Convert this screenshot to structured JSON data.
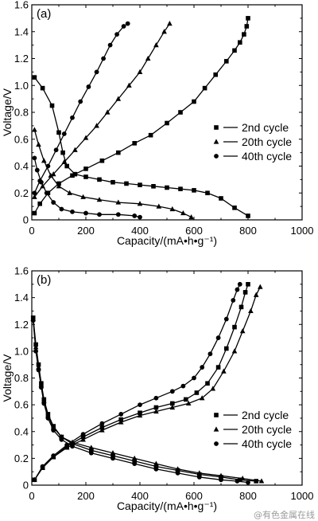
{
  "watermark": "@有色金属在线",
  "chart_data": [
    {
      "type": "line",
      "panel_label": "(a)",
      "xlabel": "Capacity/(mA•h•g⁻¹)",
      "ylabel": "Voltage/V",
      "xlim": [
        0,
        1000
      ],
      "ylim": [
        0,
        1.6
      ],
      "xticks": [
        "0",
        "200",
        "400",
        "600",
        "800",
        "1000"
      ],
      "yticks": [
        "0",
        "0.2",
        "0.4",
        "0.6",
        "0.8",
        "1.0",
        "1.2",
        "1.4",
        "1.6"
      ],
      "legend_position": "right",
      "series": [
        {
          "name": "2nd cycle",
          "marker": "square",
          "discharge": [
            [
              10,
              1.06
            ],
            [
              40,
              0.98
            ],
            [
              75,
              0.85
            ],
            [
              100,
              0.65
            ],
            [
              115,
              0.5
            ],
            [
              130,
              0.4
            ],
            [
              160,
              0.34
            ],
            [
              200,
              0.32
            ],
            [
              250,
              0.3
            ],
            [
              300,
              0.28
            ],
            [
              350,
              0.27
            ],
            [
              400,
              0.26
            ],
            [
              450,
              0.25
            ],
            [
              500,
              0.24
            ],
            [
              550,
              0.23
            ],
            [
              600,
              0.22
            ],
            [
              650,
              0.2
            ],
            [
              700,
              0.16
            ],
            [
              750,
              0.09
            ],
            [
              800,
              0.03
            ]
          ],
          "charge": [
            [
              10,
              0.05
            ],
            [
              30,
              0.12
            ],
            [
              60,
              0.2
            ],
            [
              100,
              0.27
            ],
            [
              150,
              0.33
            ],
            [
              200,
              0.38
            ],
            [
              260,
              0.44
            ],
            [
              320,
              0.5
            ],
            [
              380,
              0.57
            ],
            [
              440,
              0.63
            ],
            [
              500,
              0.72
            ],
            [
              550,
              0.8
            ],
            [
              600,
              0.88
            ],
            [
              640,
              0.98
            ],
            [
              680,
              1.08
            ],
            [
              720,
              1.18
            ],
            [
              750,
              1.26
            ],
            [
              770,
              1.32
            ],
            [
              785,
              1.38
            ],
            [
              795,
              1.44
            ],
            [
              800,
              1.5
            ]
          ]
        },
        {
          "name": "20th cycle",
          "marker": "triangle",
          "discharge": [
            [
              10,
              0.67
            ],
            [
              25,
              0.56
            ],
            [
              45,
              0.44
            ],
            [
              70,
              0.33
            ],
            [
              100,
              0.25
            ],
            [
              140,
              0.2
            ],
            [
              190,
              0.17
            ],
            [
              250,
              0.15
            ],
            [
              320,
              0.13
            ],
            [
              400,
              0.12
            ],
            [
              470,
              0.1
            ],
            [
              520,
              0.08
            ],
            [
              560,
              0.05
            ],
            [
              590,
              0.02
            ]
          ],
          "charge": [
            [
              10,
              0.17
            ],
            [
              40,
              0.25
            ],
            [
              80,
              0.34
            ],
            [
              120,
              0.43
            ],
            [
              160,
              0.52
            ],
            [
              200,
              0.61
            ],
            [
              240,
              0.7
            ],
            [
              280,
              0.8
            ],
            [
              320,
              0.9
            ],
            [
              360,
              1.0
            ],
            [
              400,
              1.1
            ],
            [
              430,
              1.2
            ],
            [
              460,
              1.3
            ],
            [
              490,
              1.4
            ],
            [
              510,
              1.46
            ]
          ]
        },
        {
          "name": "40th cycle",
          "marker": "circle",
          "discharge": [
            [
              10,
              0.46
            ],
            [
              20,
              0.37
            ],
            [
              35,
              0.28
            ],
            [
              55,
              0.2
            ],
            [
              80,
              0.13
            ],
            [
              110,
              0.08
            ],
            [
              150,
              0.06
            ],
            [
              200,
              0.05
            ],
            [
              250,
              0.04
            ],
            [
              320,
              0.04
            ],
            [
              380,
              0.03
            ],
            [
              400,
              0.02
            ]
          ],
          "charge": [
            [
              10,
              0.2
            ],
            [
              30,
              0.29
            ],
            [
              60,
              0.4
            ],
            [
              90,
              0.52
            ],
            [
              120,
              0.64
            ],
            [
              150,
              0.76
            ],
            [
              180,
              0.88
            ],
            [
              210,
              0.99
            ],
            [
              240,
              1.1
            ],
            [
              265,
              1.2
            ],
            [
              290,
              1.3
            ],
            [
              315,
              1.38
            ],
            [
              340,
              1.44
            ],
            [
              355,
              1.46
            ]
          ]
        }
      ]
    },
    {
      "type": "line",
      "panel_label": "(b)",
      "xlabel": "Capacity/(mA•h•g⁻¹)",
      "ylabel": "Voltage/V",
      "xlim": [
        0,
        1000
      ],
      "ylim": [
        0,
        1.6
      ],
      "xticks": [
        "0",
        "200",
        "400",
        "600",
        "800",
        "1000"
      ],
      "yticks": [
        "0",
        "0.2",
        "0.4",
        "0.6",
        "0.8",
        "1.0",
        "1.2",
        "1.4",
        "1.6"
      ],
      "legend_position": "right",
      "series": [
        {
          "name": "2nd cycle",
          "marker": "square",
          "discharge": [
            [
              5,
              1.25
            ],
            [
              15,
              1.05
            ],
            [
              25,
              0.9
            ],
            [
              35,
              0.76
            ],
            [
              45,
              0.64
            ],
            [
              60,
              0.53
            ],
            [
              80,
              0.44
            ],
            [
              110,
              0.36
            ],
            [
              150,
              0.31
            ],
            [
              220,
              0.26
            ],
            [
              300,
              0.22
            ],
            [
              380,
              0.18
            ],
            [
              460,
              0.14
            ],
            [
              540,
              0.11
            ],
            [
              620,
              0.08
            ],
            [
              700,
              0.06
            ],
            [
              770,
              0.04
            ],
            [
              830,
              0.03
            ]
          ],
          "charge": [
            [
              10,
              0.04
            ],
            [
              40,
              0.13
            ],
            [
              80,
              0.21
            ],
            [
              130,
              0.29
            ],
            [
              190,
              0.36
            ],
            [
              260,
              0.43
            ],
            [
              330,
              0.49
            ],
            [
              400,
              0.54
            ],
            [
              460,
              0.58
            ],
            [
              520,
              0.61
            ],
            [
              570,
              0.64
            ],
            [
              610,
              0.69
            ],
            [
              650,
              0.76
            ],
            [
              690,
              0.88
            ],
            [
              720,
              1.02
            ],
            [
              750,
              1.18
            ],
            [
              775,
              1.33
            ],
            [
              790,
              1.44
            ],
            [
              800,
              1.5
            ]
          ]
        },
        {
          "name": "20th cycle",
          "marker": "triangle",
          "discharge": [
            [
              5,
              1.24
            ],
            [
              15,
              1.03
            ],
            [
              25,
              0.88
            ],
            [
              35,
              0.75
            ],
            [
              45,
              0.63
            ],
            [
              60,
              0.52
            ],
            [
              80,
              0.43
            ],
            [
              110,
              0.36
            ],
            [
              150,
              0.32
            ],
            [
              220,
              0.28
            ],
            [
              300,
              0.24
            ],
            [
              380,
              0.2
            ],
            [
              460,
              0.16
            ],
            [
              540,
              0.12
            ],
            [
              620,
              0.09
            ],
            [
              700,
              0.07
            ],
            [
              780,
              0.05
            ],
            [
              850,
              0.03
            ]
          ],
          "charge": [
            [
              10,
              0.04
            ],
            [
              40,
              0.13
            ],
            [
              80,
              0.21
            ],
            [
              130,
              0.28
            ],
            [
              190,
              0.34
            ],
            [
              260,
              0.41
            ],
            [
              330,
              0.47
            ],
            [
              400,
              0.52
            ],
            [
              460,
              0.55
            ],
            [
              520,
              0.58
            ],
            [
              580,
              0.61
            ],
            [
              630,
              0.65
            ],
            [
              670,
              0.72
            ],
            [
              710,
              0.85
            ],
            [
              750,
              1.0
            ],
            [
              780,
              1.15
            ],
            [
              810,
              1.3
            ],
            [
              830,
              1.42
            ],
            [
              845,
              1.48
            ]
          ]
        },
        {
          "name": "40th cycle",
          "marker": "circle",
          "discharge": [
            [
              5,
              1.23
            ],
            [
              15,
              1.0
            ],
            [
              25,
              0.86
            ],
            [
              35,
              0.73
            ],
            [
              45,
              0.61
            ],
            [
              60,
              0.5
            ],
            [
              80,
              0.41
            ],
            [
              110,
              0.34
            ],
            [
              150,
              0.29
            ],
            [
              220,
              0.24
            ],
            [
              300,
              0.2
            ],
            [
              380,
              0.16
            ],
            [
              460,
              0.12
            ],
            [
              540,
              0.09
            ],
            [
              620,
              0.06
            ],
            [
              700,
              0.04
            ],
            [
              760,
              0.03
            ],
            [
              800,
              0.02
            ]
          ],
          "charge": [
            [
              10,
              0.04
            ],
            [
              40,
              0.14
            ],
            [
              80,
              0.22
            ],
            [
              130,
              0.3
            ],
            [
              190,
              0.38
            ],
            [
              260,
              0.46
            ],
            [
              330,
              0.53
            ],
            [
              400,
              0.6
            ],
            [
              460,
              0.65
            ],
            [
              520,
              0.7
            ],
            [
              560,
              0.74
            ],
            [
              600,
              0.8
            ],
            [
              630,
              0.88
            ],
            [
              660,
              0.98
            ],
            [
              690,
              1.1
            ],
            [
              720,
              1.24
            ],
            [
              745,
              1.38
            ],
            [
              760,
              1.46
            ],
            [
              770,
              1.5
            ]
          ]
        }
      ]
    }
  ]
}
